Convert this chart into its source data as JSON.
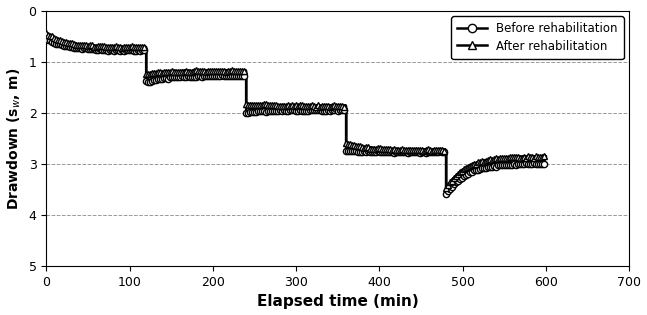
{
  "title": "",
  "xlabel": "Elapsed time (min)",
  "xlim": [
    0,
    700
  ],
  "ylim": [
    5,
    0
  ],
  "xticks": [
    0,
    100,
    200,
    300,
    400,
    500,
    600,
    700
  ],
  "yticks": [
    0,
    1,
    2,
    3,
    4,
    5
  ],
  "background_color": "#ffffff",
  "grid_color": "#999999",
  "legend_labels": [
    "Before rehabilitation",
    "After rehabilitation"
  ],
  "step_times": [
    0,
    120,
    240,
    360,
    480,
    600
  ],
  "before_step_end": [
    0.78,
    1.28,
    1.95,
    2.77,
    2.99,
    3.57
  ],
  "before_step_jump": [
    0.55,
    0.62,
    0.72,
    0.8,
    0.82,
    0.0
  ],
  "after_step_end": [
    0.72,
    1.18,
    1.87,
    2.73,
    2.85,
    3.47
  ],
  "after_step_jump": [
    0.45,
    0.52,
    0.65,
    0.72,
    0.75,
    0.0
  ],
  "noise_scale": 0.008,
  "line_width": 1.8,
  "marker_interval": 8
}
